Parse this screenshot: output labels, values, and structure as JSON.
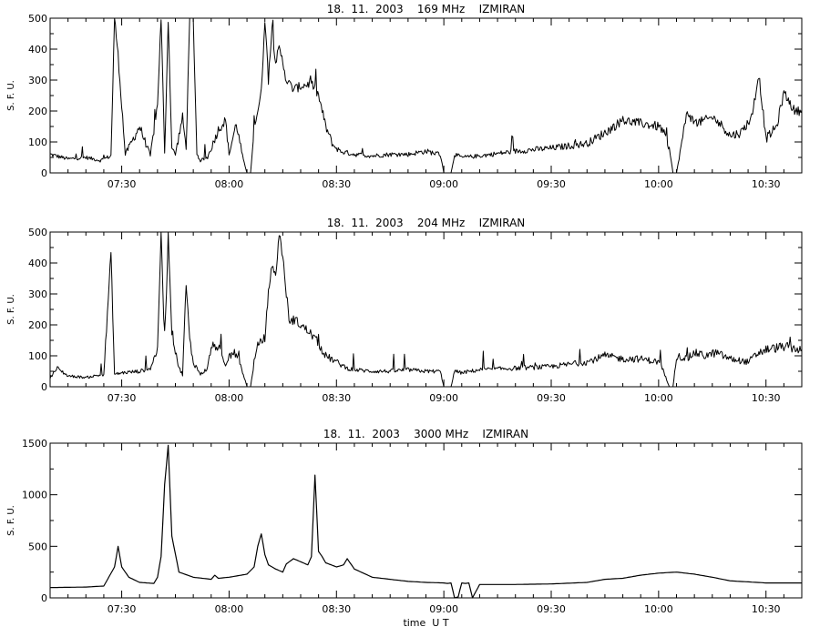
{
  "chart_data": [
    {
      "type": "line",
      "title": "18.  11.  2003    169 MHz    IZMIRAN",
      "xlabel": "",
      "ylabel": "S. F. U.",
      "xlim": [
        "07:10",
        "10:40"
      ],
      "ylim": [
        0,
        500
      ],
      "xticks": [
        "07:30",
        "08:00",
        "08:30",
        "09:00",
        "09:30",
        "10:00",
        "10:30"
      ],
      "yticks": [
        "0",
        "100",
        "200",
        "300",
        "400",
        "500"
      ],
      "grid": false,
      "color": "#000000",
      "series": [
        {
          "x": [
            "07:10",
            "07:15",
            "07:20",
            "07:24",
            "07:27",
            "07:28",
            "07:29",
            "07:31",
            "07:35",
            "07:38",
            "07:40",
            "07:41",
            "07:42",
            "07:43",
            "07:44",
            "07:45",
            "07:47",
            "07:48",
            "07:49",
            "07:50",
            "07:51",
            "07:52",
            "07:54",
            "07:57",
            "07:59",
            "08:00",
            "08:02",
            "08:04",
            "08:05",
            "08:06",
            "08:07",
            "08:08",
            "08:09",
            "08:10",
            "08:11",
            "08:12",
            "08:13",
            "08:14",
            "08:15",
            "08:16",
            "08:18",
            "08:20",
            "08:23",
            "08:25",
            "08:27",
            "08:29",
            "08:31",
            "08:35",
            "08:40",
            "08:45",
            "08:50",
            "08:55",
            "08:59",
            "09:00",
            "09:01",
            "09:02",
            "09:03",
            "09:05",
            "09:10",
            "09:20",
            "09:30",
            "09:40",
            "09:45",
            "09:50",
            "09:55",
            "10:00",
            "10:01",
            "10:03",
            "10:04",
            "10:05",
            "10:08",
            "10:10",
            "10:13",
            "10:15",
            "10:18",
            "10:20",
            "10:23",
            "10:26",
            "10:28",
            "10:30",
            "10:33",
            "10:35",
            "10:38",
            "10:40"
          ],
          "y": [
            60,
            45,
            50,
            40,
            55,
            500,
            380,
            60,
            150,
            55,
            220,
            500,
            60,
            500,
            80,
            60,
            180,
            80,
            500,
            500,
            60,
            40,
            50,
            140,
            170,
            60,
            160,
            40,
            0,
            0,
            150,
            200,
            260,
            500,
            300,
            470,
            360,
            400,
            360,
            300,
            270,
            280,
            290,
            250,
            150,
            90,
            70,
            60,
            55,
            60,
            60,
            70,
            60,
            0,
            0,
            0,
            60,
            50,
            55,
            70,
            80,
            95,
            130,
            170,
            160,
            150,
            140,
            80,
            0,
            0,
            200,
            160,
            170,
            180,
            150,
            120,
            130,
            180,
            320,
            110,
            150,
            260,
            200,
            200
          ]
        }
      ]
    },
    {
      "type": "line",
      "title": "18.  11.  2003    204 MHz    IZMIRAN",
      "xlabel": "",
      "ylabel": "S. F. U.",
      "xlim": [
        "07:10",
        "10:40"
      ],
      "ylim": [
        0,
        500
      ],
      "xticks": [
        "07:30",
        "08:00",
        "08:30",
        "09:00",
        "09:30",
        "10:00",
        "10:30"
      ],
      "yticks": [
        "0",
        "100",
        "200",
        "300",
        "400",
        "500"
      ],
      "grid": false,
      "color": "#000000",
      "series": [
        {
          "x": [
            "07:10",
            "07:12",
            "07:15",
            "07:20",
            "07:25",
            "07:27",
            "07:28",
            "07:30",
            "07:35",
            "07:38",
            "07:40",
            "07:41",
            "07:42",
            "07:43",
            "07:44",
            "07:45",
            "07:46",
            "07:47",
            "07:48",
            "07:49",
            "07:50",
            "07:52",
            "07:54",
            "07:55",
            "07:57",
            "07:59",
            "08:00",
            "08:02",
            "08:04",
            "08:05",
            "08:06",
            "08:07",
            "08:08",
            "08:10",
            "08:11",
            "08:12",
            "08:13",
            "08:14",
            "08:15",
            "08:16",
            "08:17",
            "08:18",
            "08:20",
            "08:23",
            "08:25",
            "08:27",
            "08:30",
            "08:33",
            "08:35",
            "08:40",
            "08:45",
            "08:50",
            "08:55",
            "08:59",
            "09:00",
            "09:01",
            "09:02",
            "09:03",
            "09:05",
            "09:10",
            "09:20",
            "09:30",
            "09:40",
            "09:45",
            "09:50",
            "09:55",
            "10:00",
            "10:01",
            "10:03",
            "10:04",
            "10:05",
            "10:08",
            "10:10",
            "10:13",
            "10:16",
            "10:20",
            "10:25",
            "10:28",
            "10:30",
            "10:35",
            "10:40"
          ],
          "y": [
            30,
            60,
            35,
            30,
            40,
            430,
            40,
            45,
            50,
            60,
            120,
            500,
            130,
            500,
            180,
            120,
            60,
            40,
            330,
            150,
            80,
            40,
            60,
            130,
            130,
            60,
            100,
            110,
            40,
            0,
            0,
            80,
            130,
            160,
            300,
            400,
            350,
            500,
            420,
            300,
            200,
            220,
            200,
            170,
            140,
            100,
            80,
            60,
            55,
            50,
            50,
            55,
            50,
            50,
            0,
            0,
            0,
            50,
            45,
            55,
            60,
            65,
            80,
            100,
            90,
            90,
            80,
            60,
            0,
            0,
            100,
            90,
            110,
            100,
            110,
            90,
            80,
            110,
            120,
            130,
            120
          ]
        }
      ]
    },
    {
      "type": "line",
      "title": "18.  11.  2003    3000 MHz    IZMIRAN",
      "xlabel": "time  U T",
      "ylabel": "S. F. U.",
      "xlim": [
        "07:10",
        "10:40"
      ],
      "ylim": [
        0,
        1500
      ],
      "xticks": [
        "07:30",
        "08:00",
        "08:30",
        "09:00",
        "09:30",
        "10:00",
        "10:30"
      ],
      "yticks": [
        "0",
        "500",
        "1000",
        "1500"
      ],
      "grid": false,
      "color": "#000000",
      "series": [
        {
          "x": [
            "07:10",
            "07:20",
            "07:25",
            "07:28",
            "07:29",
            "07:30",
            "07:32",
            "07:35",
            "07:39",
            "07:40",
            "07:41",
            "07:42",
            "07:43",
            "07:44",
            "07:46",
            "07:50",
            "07:55",
            "07:56",
            "07:57",
            "08:00",
            "08:05",
            "08:07",
            "08:08",
            "08:09",
            "08:10",
            "08:11",
            "08:13",
            "08:15",
            "08:16",
            "08:18",
            "08:20",
            "08:22",
            "08:23",
            "08:24",
            "08:25",
            "08:26",
            "08:27",
            "08:30",
            "08:32",
            "08:33",
            "08:35",
            "08:40",
            "08:45",
            "08:50",
            "08:55",
            "09:00",
            "09:01",
            "09:02",
            "09:03",
            "09:04",
            "09:05",
            "09:06",
            "09:07",
            "09:08",
            "09:10",
            "09:20",
            "09:30",
            "09:40",
            "09:45",
            "09:50",
            "09:55",
            "10:00",
            "10:05",
            "10:10",
            "10:15",
            "10:20",
            "10:30",
            "10:40"
          ],
          "y": [
            100,
            105,
            115,
            300,
            500,
            300,
            200,
            150,
            140,
            200,
            400,
            1100,
            1480,
            600,
            250,
            200,
            180,
            220,
            190,
            200,
            230,
            300,
            500,
            620,
            420,
            320,
            280,
            250,
            330,
            380,
            350,
            320,
            400,
            1190,
            450,
            400,
            340,
            300,
            320,
            380,
            280,
            200,
            180,
            160,
            150,
            145,
            140,
            145,
            0,
            10,
            145,
            140,
            145,
            0,
            130,
            130,
            135,
            150,
            180,
            190,
            220,
            240,
            250,
            230,
            200,
            165,
            145,
            145
          ]
        }
      ]
    }
  ]
}
